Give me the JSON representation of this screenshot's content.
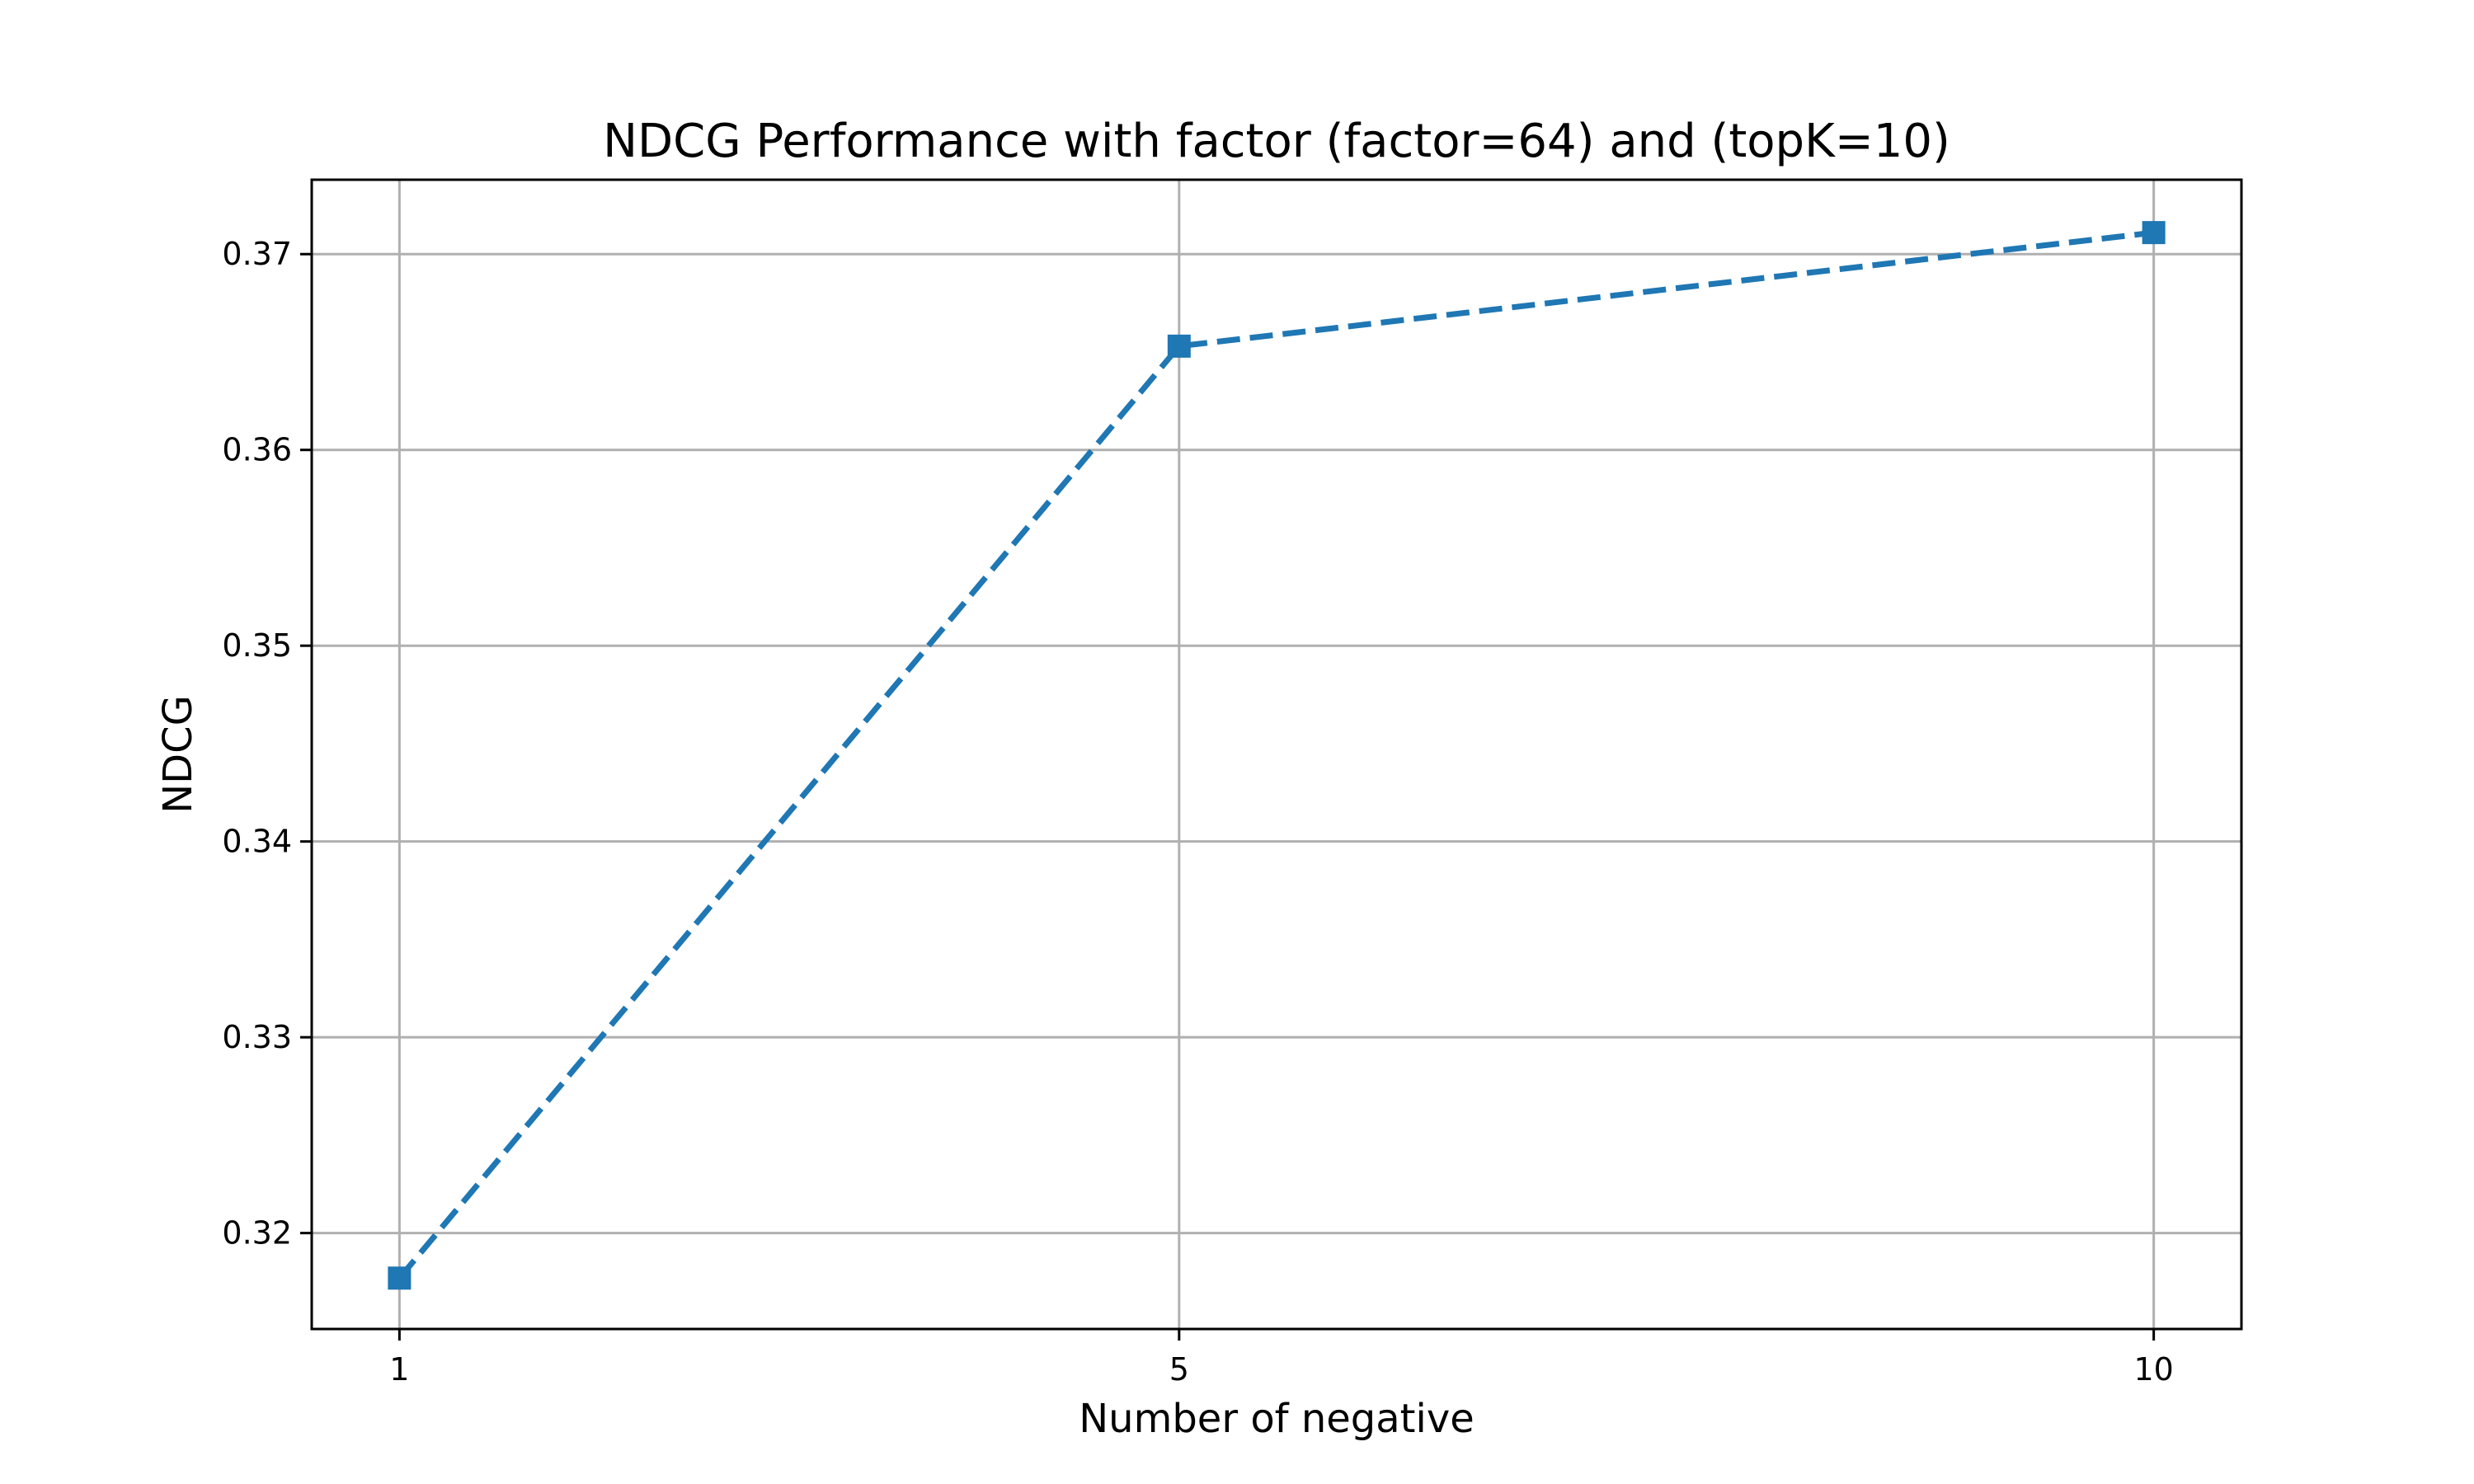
{
  "chart_data": {
    "type": "line",
    "title": "NDCG Performance with factor (factor=64) and (topK=10)",
    "xlabel": "Number of negative",
    "ylabel": "NDCG",
    "x": [
      1,
      5,
      10
    ],
    "x_tick_labels": [
      "1",
      "5",
      "10"
    ],
    "xlim": [
      0.55,
      10.45
    ],
    "ylim": [
      0.3151,
      0.3738
    ],
    "y_ticks": [
      0.32,
      0.33,
      0.34,
      0.35,
      0.36,
      0.37
    ],
    "y_tick_labels": [
      "0.32",
      "0.33",
      "0.34",
      "0.35",
      "0.36",
      "0.37"
    ],
    "grid": true,
    "series": [
      {
        "values": [
          0.3177,
          0.3653,
          0.3711
        ],
        "color": "#1f77b4",
        "line_style": "dashed",
        "marker": "square"
      }
    ]
  }
}
